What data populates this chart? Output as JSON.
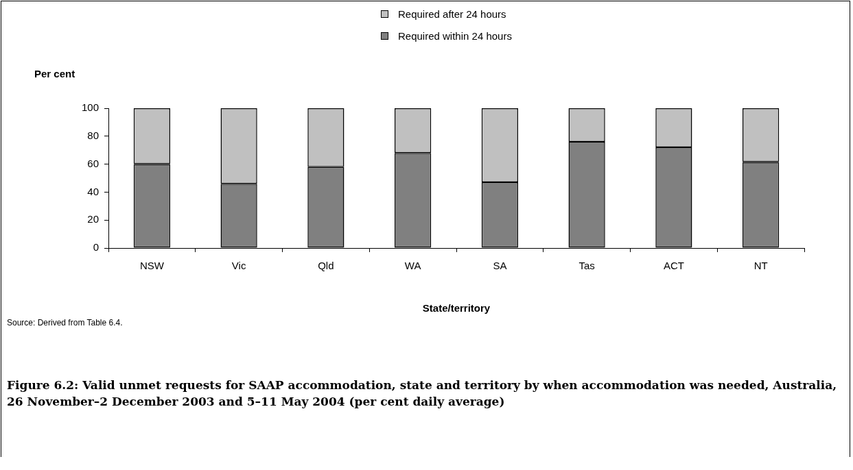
{
  "chart_data": {
    "type": "bar",
    "stacked": true,
    "title": "Figure 6.2: Valid unmet requests for SAAP accommodation, state and territory by when accommodation was needed, Australia, 26 November–2 December 2003 and 5–11 May 2004 (per cent daily average)",
    "ylabel": "Per cent",
    "xlabel": "State/territory",
    "annotations": [
      "Source: Derived from Table 6.4."
    ],
    "categories": [
      "NSW",
      "Vic",
      "Qld",
      "WA",
      "SA",
      "Tas",
      "ACT",
      "NT"
    ],
    "series": [
      {
        "name": "Required within 24 hours",
        "color": "#808080",
        "values": [
          60,
          46,
          58,
          68,
          47,
          76,
          72,
          61.5
        ]
      },
      {
        "name": "Required after 24 hours",
        "color": "#c0c0c0",
        "values": [
          40,
          54,
          42,
          32,
          53,
          24,
          28,
          38.5
        ]
      }
    ],
    "ylim": [
      0,
      100
    ],
    "yticks": [
      0,
      20,
      40,
      60,
      80,
      100
    ],
    "grid": false,
    "legend": "top"
  }
}
